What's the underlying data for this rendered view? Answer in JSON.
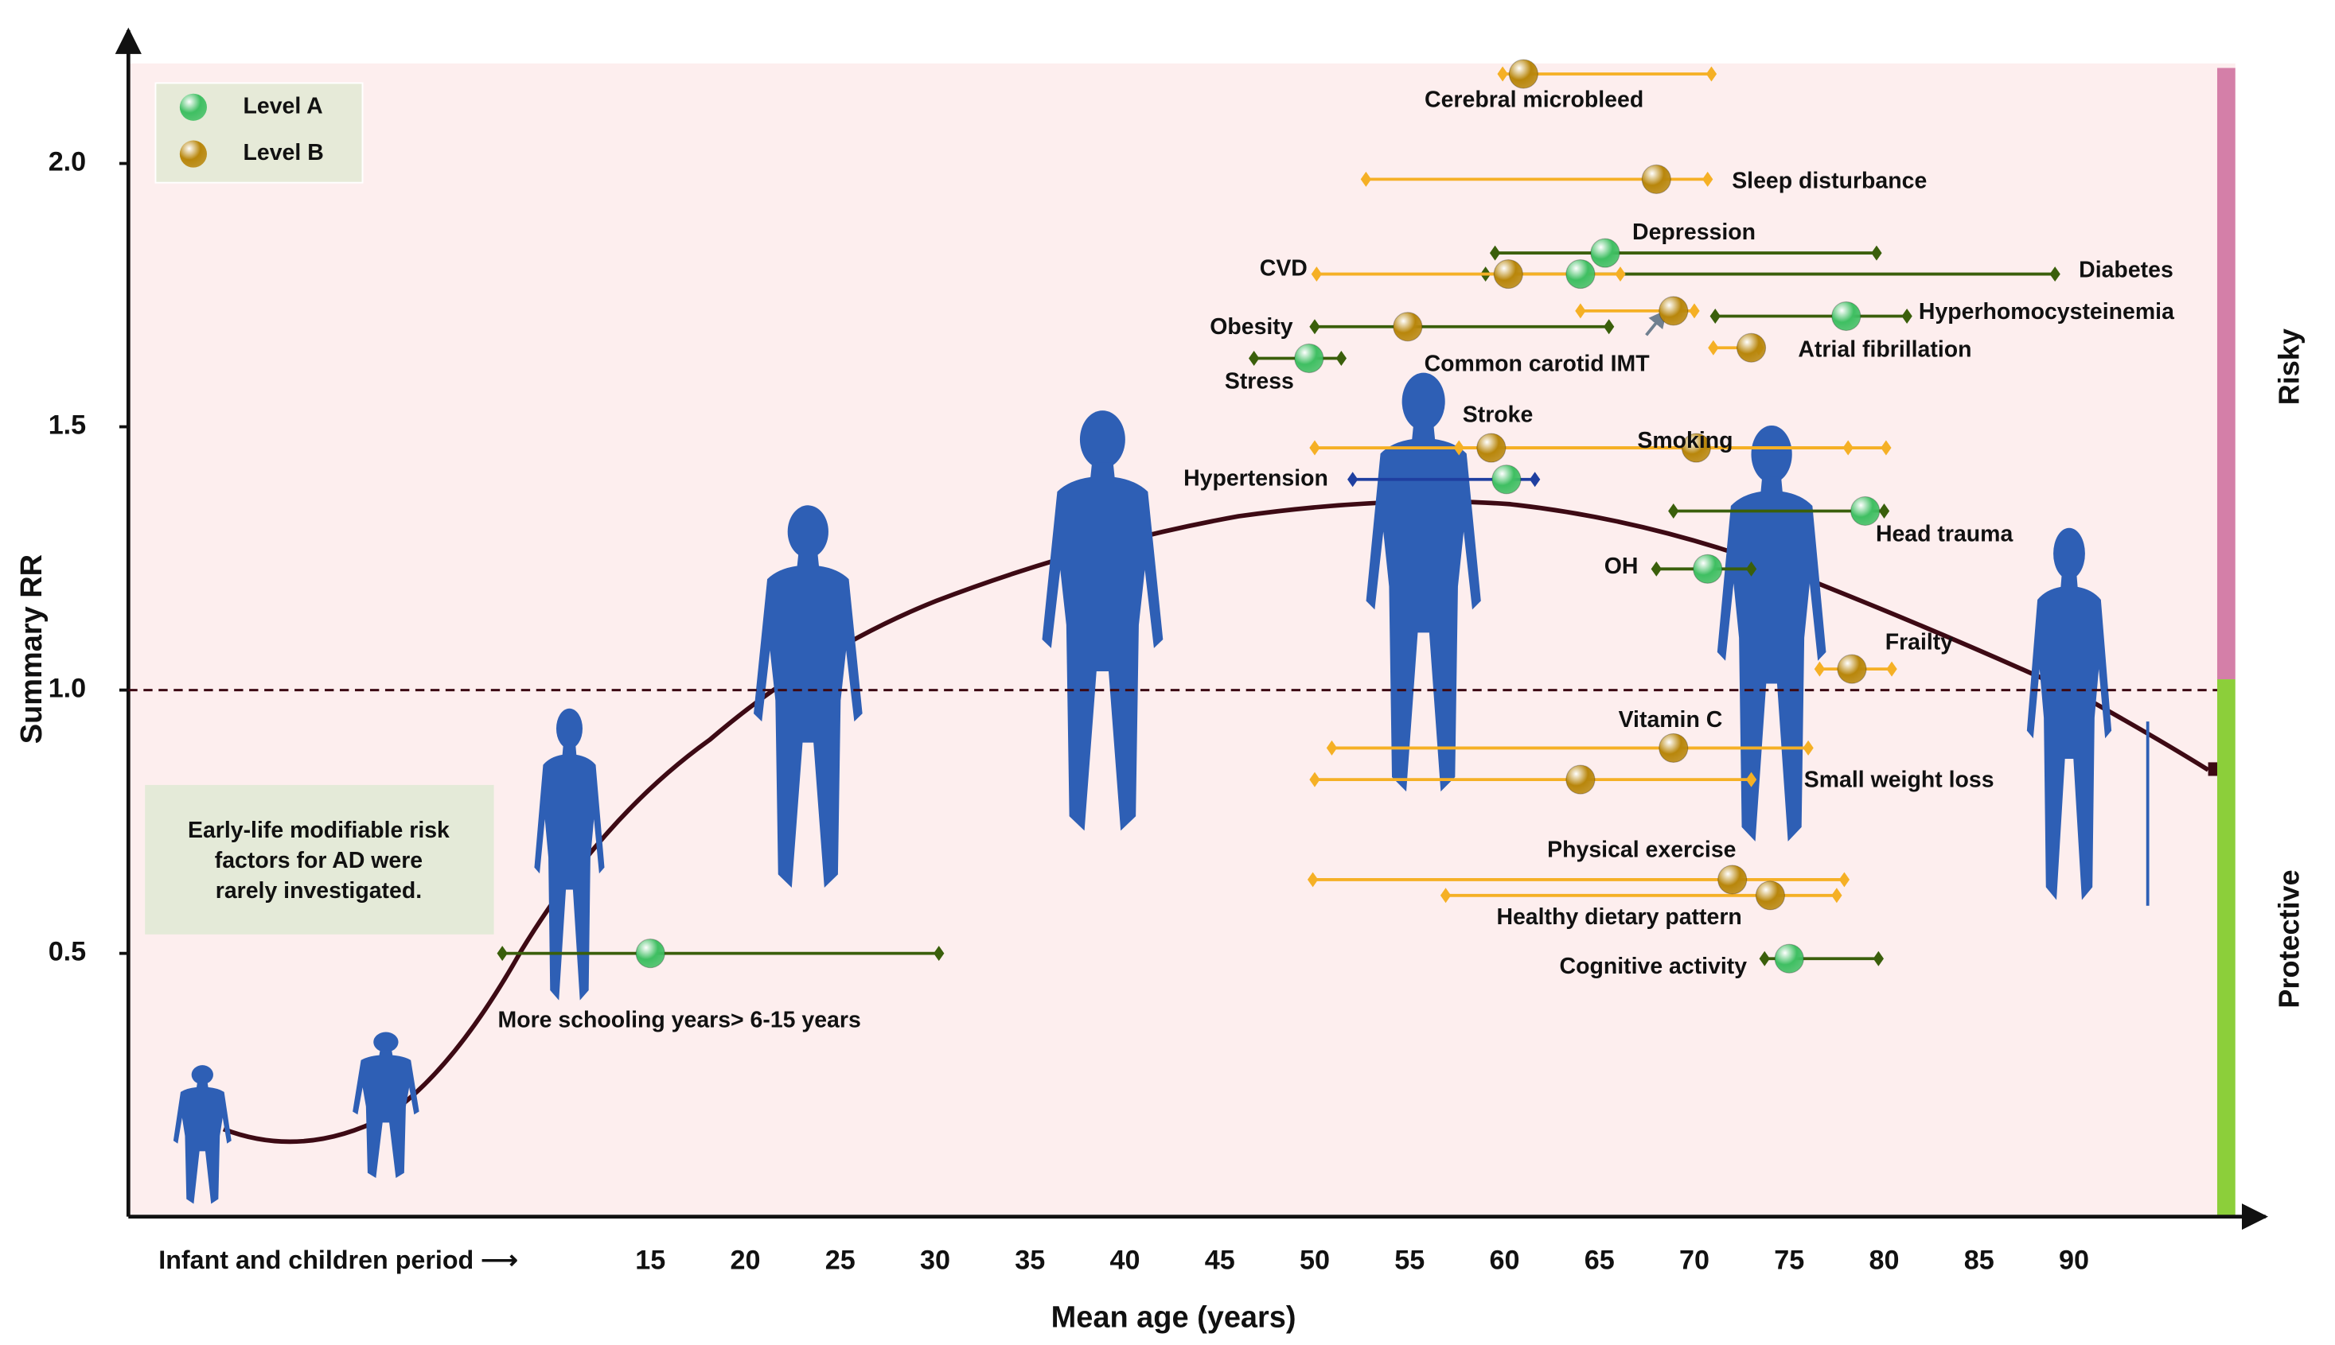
{
  "chart_data": {
    "type": "forest",
    "x_label": "Mean age (years)",
    "x_prefix_label": "Infant and children period ⟶",
    "y_label": "Summary RR",
    "xlim": [
      -12.5,
      98.5
    ],
    "xticks": [
      15,
      20,
      25,
      30,
      35,
      40,
      45,
      50,
      55,
      60,
      65,
      70,
      75,
      80,
      85,
      90
    ],
    "ylim": [
      0,
      2.19
    ],
    "yticks": [
      0.5,
      {
        "value": 1,
        "label": "1.0"
      },
      1.5,
      {
        "value": 2,
        "label": "2.0"
      }
    ],
    "reference": 1,
    "zones": [
      {
        "name": "Risky",
        "color": "#d47fa8"
      },
      {
        "name": "Protective",
        "color": "#8ccf3a"
      }
    ],
    "note": [
      "Early-life modifiable risk",
      "factors for AD were",
      "rarely investigated."
    ],
    "series": [
      {
        "name": "Level A",
        "color": "#3fbf62",
        "points": [
          {
            "label": "Depression",
            "x": 65.3,
            "y": 1.83,
            "x_range": [
              59.5,
              79.6
            ],
            "range_color": "#3a5f0b"
          },
          {
            "label": "Diabetes",
            "x": 64.0,
            "y": 1.79,
            "x_range": [
              59.0,
              89.0
            ],
            "range_color": "#3a5f0b"
          },
          {
            "label": "Hyperhomocysteinemia",
            "x": 78.0,
            "y": 1.71,
            "x_range": [
              71.1,
              81.2
            ],
            "range_color": "#3a5f0b"
          },
          {
            "label": "Stress",
            "x": 49.7,
            "y": 1.63,
            "x_range": [
              46.8,
              51.4
            ],
            "range_color": "#3a5f0b"
          },
          {
            "label": "Hypertension",
            "x": 60.1,
            "y": 1.4,
            "x_range": [
              52.0,
              61.6
            ],
            "range_color": "#1f3fa0"
          },
          {
            "label": "Head trauma",
            "x": 79.0,
            "y": 1.34,
            "x_range": [
              68.9,
              80.0
            ],
            "range_color": "#3a5f0b"
          },
          {
            "label": "OH",
            "x": 70.7,
            "y": 1.23,
            "x_range": [
              68.0,
              73.0
            ],
            "range_color": "#3a5f0b"
          },
          {
            "label": "Cognitive activity",
            "x": 75.0,
            "y": 0.49,
            "x_range": [
              73.7,
              79.7
            ],
            "range_color": "#3a5f0b"
          },
          {
            "label": "More schooling years> 6-15 years",
            "x": 15,
            "y": 0.5,
            "x_range": [
              7.2,
              30.2
            ],
            "range_color": "#3a5f0b"
          }
        ]
      },
      {
        "name": "Level B",
        "color": "#b8860b",
        "points": [
          {
            "label": "Cerebral microbleed",
            "x": 61.0,
            "y": 2.17,
            "x_range": [
              59.9,
              70.9
            ],
            "range_color": "#f5b025"
          },
          {
            "label": "Sleep disturbance",
            "x": 68.0,
            "y": 1.97,
            "x_range": [
              52.7,
              70.7
            ],
            "range_color": "#f5b025"
          },
          {
            "label": "CVD",
            "x": 60.2,
            "y": 1.79,
            "x_range": [
              50.1,
              66.1
            ],
            "range_color": "#f5b025"
          },
          {
            "label": "Obesity",
            "x": 54.9,
            "y": 1.69,
            "x_range": [
              50.0,
              65.5
            ],
            "range_color": "#3a5f0b"
          },
          {
            "label": "Common carotid IMT",
            "x": 68.9,
            "y": 1.72,
            "x_range": [
              64.0,
              70.0
            ],
            "range_color": "#f5b025"
          },
          {
            "label": "Atrial fibrillation",
            "x": 73.0,
            "y": 1.65,
            "x_range": [
              71.0,
              73.4
            ],
            "range_color": "#f5b025"
          },
          {
            "label": "Stroke",
            "x": 59.3,
            "y": 1.46,
            "x_range": [
              50.0,
              80.1
            ],
            "range_color": "#f5b025"
          },
          {
            "label": "Smoking",
            "x": 70.1,
            "y": 1.46,
            "x_range": [
              57.6,
              78.1
            ],
            "range_color": "#f5b025"
          },
          {
            "label": "Frailty",
            "x": 78.3,
            "y": 1.04,
            "x_range": [
              76.6,
              80.4
            ],
            "range_color": "#f5b025"
          },
          {
            "label": "Vitamin C",
            "x": 68.9,
            "y": 0.89,
            "x_range": [
              50.9,
              76.0
            ],
            "range_color": "#f5b025"
          },
          {
            "label": "Small weight loss",
            "x": 64.0,
            "y": 0.83,
            "x_range": [
              50.0,
              73.0
            ],
            "range_color": "#f5b025"
          },
          {
            "label": "Physical exercise",
            "x": 72.0,
            "y": 0.64,
            "x_range": [
              49.9,
              77.9
            ],
            "range_color": "#f5b025"
          },
          {
            "label": "Healthy dietary pattern",
            "x": 74.0,
            "y": 0.61,
            "x_range": [
              56.9,
              77.5
            ],
            "range_color": "#f5b025"
          }
        ]
      }
    ]
  }
}
